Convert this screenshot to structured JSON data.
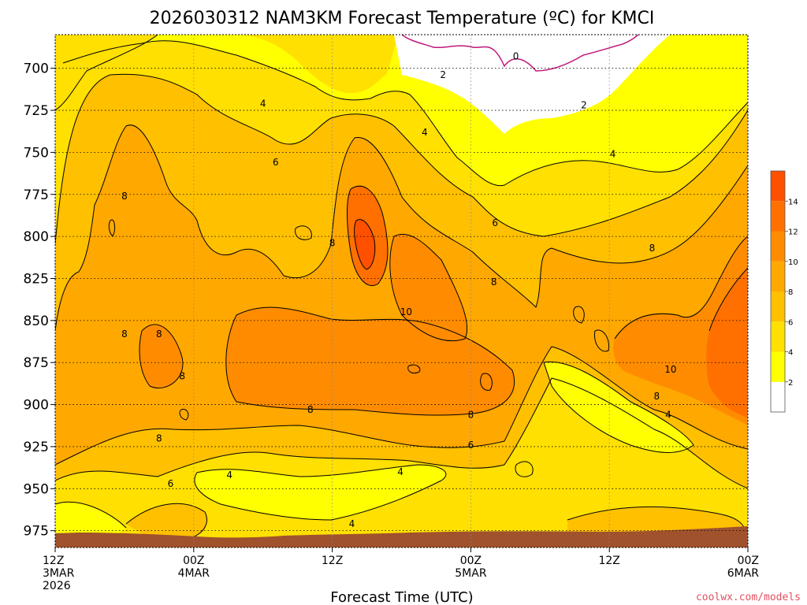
{
  "chart_data": {
    "type": "heatmap",
    "title": "2026030312 NAM3KM Forecast Temperature (ºC) for KMCI",
    "xlabel": "Forecast Time (UTC)",
    "ylabel": "",
    "y_axis": {
      "ticks": [
        700,
        725,
        750,
        775,
        800,
        825,
        850,
        875,
        900,
        925,
        950,
        975
      ],
      "range": [
        680,
        985
      ],
      "inverted": true
    },
    "x_axis": {
      "ticks": [
        {
          "hour": 0,
          "label": "12Z",
          "sub1": "3MAR",
          "sub2": "2026"
        },
        {
          "hour": 12,
          "label": "00Z",
          "sub1": "4MAR",
          "sub2": ""
        },
        {
          "hour": 24,
          "label": "12Z",
          "sub1": "",
          "sub2": ""
        },
        {
          "hour": 36,
          "label": "00Z",
          "sub1": "5MAR",
          "sub2": ""
        },
        {
          "hour": 48,
          "label": "12Z",
          "sub1": "",
          "sub2": ""
        },
        {
          "hour": 60,
          "label": "00Z",
          "sub1": "6MAR",
          "sub2": ""
        }
      ],
      "range": [
        0,
        60
      ]
    },
    "colorbar": {
      "bins": [
        {
          "lo": -99,
          "hi": 2,
          "color": "#ffffff"
        },
        {
          "lo": 2,
          "hi": 4,
          "color": "#ffff00"
        },
        {
          "lo": 4,
          "hi": 6,
          "color": "#ffe000"
        },
        {
          "lo": 6,
          "hi": 8,
          "color": "#ffc000"
        },
        {
          "lo": 8,
          "hi": 10,
          "color": "#ffa800"
        },
        {
          "lo": 10,
          "hi": 12,
          "color": "#ff8c00"
        },
        {
          "lo": 12,
          "hi": 14,
          "color": "#ff7000"
        },
        {
          "lo": 14,
          "hi": 99,
          "color": "#ff5000"
        }
      ],
      "labels": [
        "2",
        "4",
        "6",
        "8",
        "10",
        "12",
        "14"
      ]
    },
    "contour_labels": [
      {
        "text": "0",
        "hour": 39.9,
        "p": 693
      },
      {
        "text": "2",
        "hour": 33.6,
        "p": 704
      },
      {
        "text": "2",
        "hour": 45.8,
        "p": 722
      },
      {
        "text": "4",
        "hour": 18.0,
        "p": 721
      },
      {
        "text": "4",
        "hour": 32.0,
        "p": 738
      },
      {
        "text": "4",
        "hour": 48.3,
        "p": 751
      },
      {
        "text": "6",
        "hour": 19.1,
        "p": 756
      },
      {
        "text": "6",
        "hour": 38.1,
        "p": 792
      },
      {
        "text": "8",
        "hour": 6.0,
        "p": 776
      },
      {
        "text": "8",
        "hour": 24.0,
        "p": 804
      },
      {
        "text": "8",
        "hour": 38.0,
        "p": 827
      },
      {
        "text": "8",
        "hour": 51.7,
        "p": 807
      },
      {
        "text": "10",
        "hour": 30.4,
        "p": 845
      },
      {
        "text": "8",
        "hour": 6.0,
        "p": 858
      },
      {
        "text": "8",
        "hour": 9.0,
        "p": 858
      },
      {
        "text": "8",
        "hour": 11.0,
        "p": 883
      },
      {
        "text": "10",
        "hour": 53.3,
        "p": 879
      },
      {
        "text": "8",
        "hour": 52.1,
        "p": 895
      },
      {
        "text": "4",
        "hour": 53.1,
        "p": 906
      },
      {
        "text": "8",
        "hour": 22.1,
        "p": 903
      },
      {
        "text": "8",
        "hour": 36.0,
        "p": 906
      },
      {
        "text": "8",
        "hour": 9.0,
        "p": 920
      },
      {
        "text": "6",
        "hour": 36.0,
        "p": 924
      },
      {
        "text": "6",
        "hour": 10.0,
        "p": 947
      },
      {
        "text": "4",
        "hour": 15.1,
        "p": 942
      },
      {
        "text": "4",
        "hour": 29.9,
        "p": 940
      },
      {
        "text": "4",
        "hour": 25.7,
        "p": 971
      }
    ],
    "grid": "dotted",
    "legend": "right"
  },
  "credit": "coolwx.com/models"
}
